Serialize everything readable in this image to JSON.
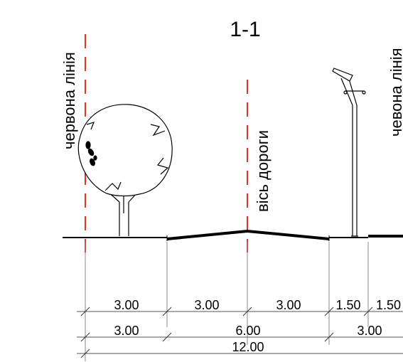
{
  "title": "1-1",
  "labels": {
    "red_line_left": "червона лінія",
    "road_axis": "вісь дороги",
    "red_line_right": "чевона лінія"
  },
  "dimensions": {
    "row1": [
      "3.00",
      "3.00",
      "3.00",
      "1.50",
      "1.50"
    ],
    "row2": [
      "3.00",
      "6.00",
      "3.00"
    ],
    "row3": [
      "12.00"
    ]
  },
  "colors": {
    "red_line": "#e8302a",
    "line": "#000000"
  },
  "icons": {
    "tree": "tree-icon",
    "street_lamp": "street-lamp-icon"
  }
}
